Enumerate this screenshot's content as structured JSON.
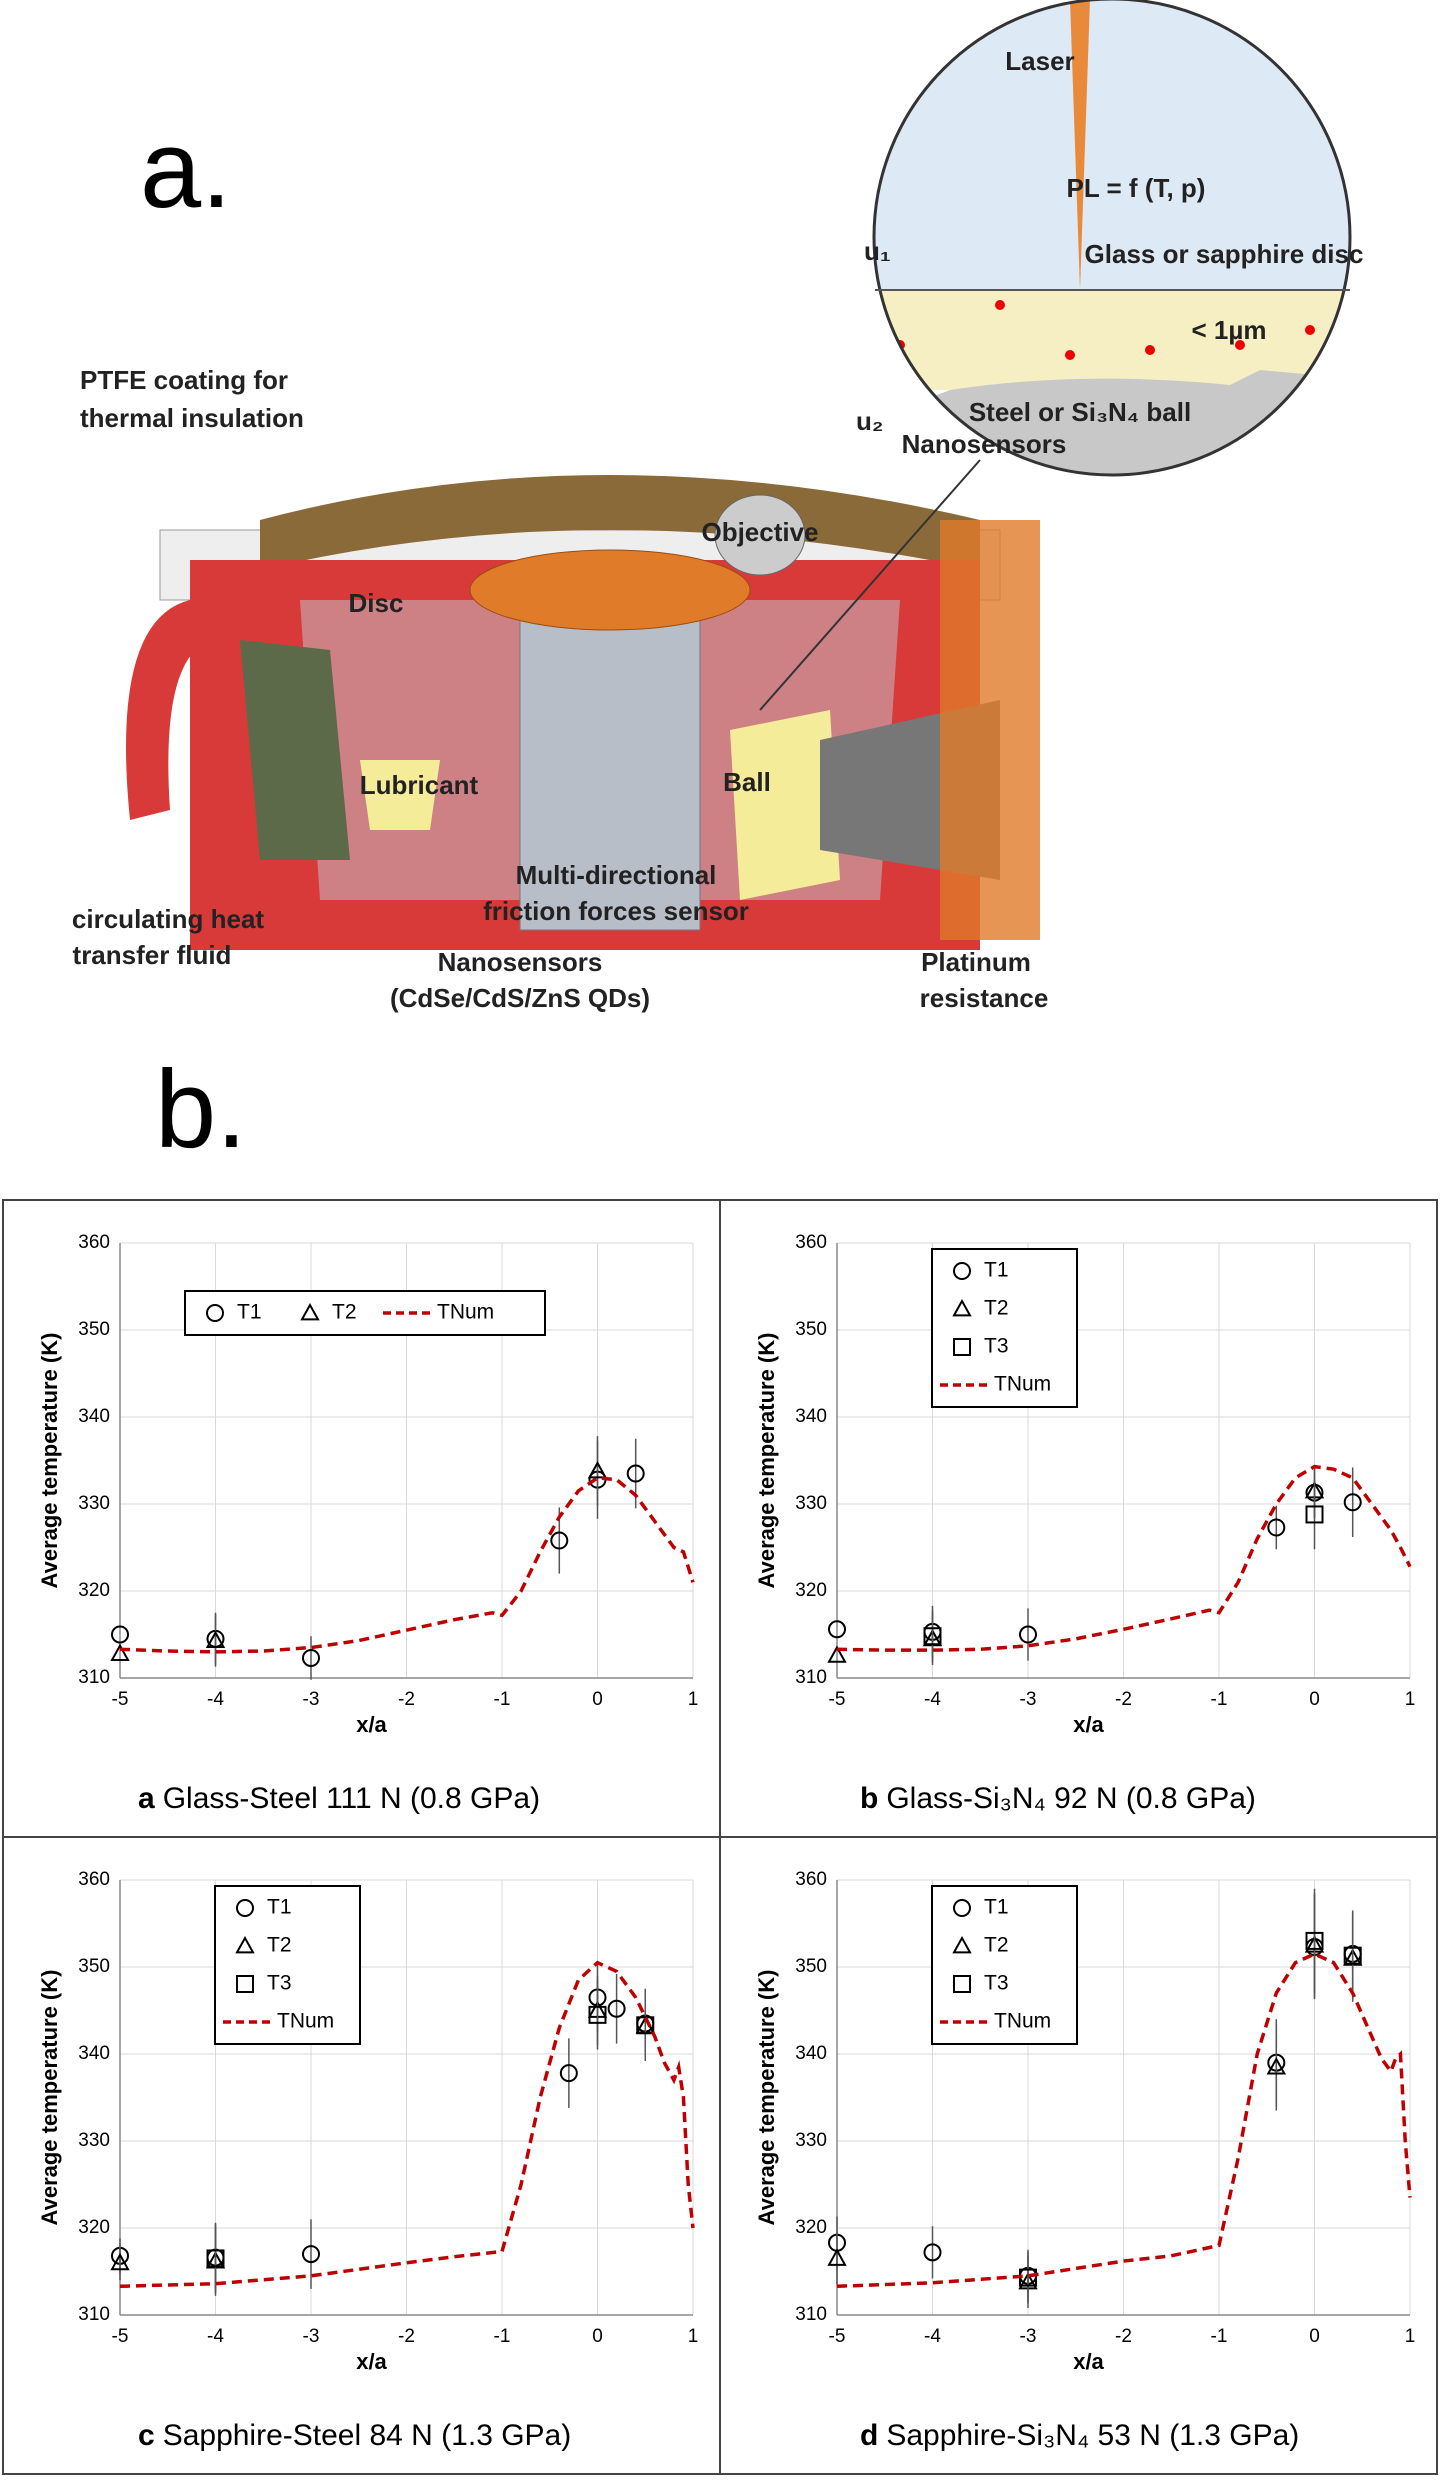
{
  "diagram": {
    "panel_a": "a.",
    "panel_b": "b.",
    "labels": [
      "Laser",
      "PL = f (T, p)",
      "Glass or sapphire disc",
      "u₁",
      "< 1µm",
      "Steel or Si₃N₄ ball",
      "u₂",
      "Nanosensors",
      "PTFE coating for",
      "thermal insulation",
      "Objective",
      "Disc",
      "Lubricant",
      "Ball",
      "Multi-directional",
      "friction forces sensor",
      "circulating heat",
      "transfer fluid",
      "Nanosensors",
      "(CdSe/CdS/ZnS QDs)",
      "Platinum",
      "resistance"
    ]
  },
  "chart_data": [
    {
      "type": "scatter",
      "caption_label": "a",
      "caption": "Glass-Steel 111 N (0.8 GPa)",
      "xlabel": "x/a",
      "ylabel": "Average temperature (K)",
      "xlim": [
        -5,
        1
      ],
      "xticks": [
        -5,
        -4,
        -3,
        -2,
        -1,
        0,
        1
      ],
      "ylim": [
        310,
        360
      ],
      "yticks": [
        310,
        320,
        330,
        340,
        350,
        360
      ],
      "grid": true,
      "legend": "upper left",
      "legend_orientation": "horizontal",
      "series": [
        {
          "name": "T1",
          "marker": "circle",
          "color": "#000000",
          "x": [
            -5,
            -4,
            -3,
            -0.4,
            0,
            0.4
          ],
          "values": [
            315,
            314.5,
            312.3,
            325.8,
            332.8,
            333.5
          ],
          "errors": [
            0,
            3,
            2.5,
            3.8,
            4.5,
            4
          ]
        },
        {
          "name": "T2",
          "marker": "triangle",
          "color": "#000000",
          "x": [
            -5,
            -4,
            0
          ],
          "values": [
            312.8,
            314.3,
            333.8
          ],
          "errors": [
            0,
            3,
            4
          ]
        },
        {
          "name": "TNum",
          "marker": "dashed-line",
          "color": "#c00000",
          "x": [
            -5,
            -4.5,
            -4,
            -3.5,
            -3,
            -2.5,
            -2,
            -1.5,
            -1.1,
            -1,
            -0.8,
            -0.6,
            -0.4,
            -0.2,
            0,
            0.2,
            0.4,
            0.6,
            0.8,
            0.9,
            1
          ],
          "values": [
            313.3,
            313.1,
            313,
            313.1,
            313.5,
            314.3,
            315.5,
            316.7,
            317.5,
            317.2,
            320,
            324.5,
            328.5,
            331.5,
            333,
            332.8,
            331,
            328,
            325,
            324.5,
            321
          ]
        }
      ]
    },
    {
      "type": "scatter",
      "caption_label": "b",
      "caption": "Glass-Si₃N₄ 92 N (0.8 GPa)",
      "xlabel": "x/a",
      "ylabel": "Average temperature (K)",
      "xlim": [
        -5,
        1
      ],
      "xticks": [
        -5,
        -4,
        -3,
        -2,
        -1,
        0,
        1
      ],
      "ylim": [
        310,
        360
      ],
      "yticks": [
        310,
        320,
        330,
        340,
        350,
        360
      ],
      "grid": true,
      "legend": "upper left",
      "legend_orientation": "vertical",
      "series": [
        {
          "name": "T1",
          "marker": "circle",
          "color": "#000000",
          "x": [
            -5,
            -4,
            -3,
            -0.4,
            0,
            0.4
          ],
          "values": [
            315.6,
            315.3,
            315,
            327.3,
            331.3,
            330.2
          ],
          "errors": [
            0,
            3,
            3,
            2.5,
            3,
            4
          ]
        },
        {
          "name": "T2",
          "marker": "triangle",
          "color": "#000000",
          "x": [
            -5,
            -4,
            0
          ],
          "values": [
            312.6,
            314.5,
            331.5
          ],
          "errors": [
            0,
            3,
            3
          ]
        },
        {
          "name": "T3",
          "marker": "square",
          "color": "#000000",
          "x": [
            -4,
            0
          ],
          "values": [
            314.8,
            328.8
          ],
          "errors": [
            3,
            4
          ]
        },
        {
          "name": "TNum",
          "marker": "dashed-line",
          "color": "#c00000",
          "x": [
            -5,
            -4.5,
            -4,
            -3.5,
            -3,
            -2.5,
            -2,
            -1.5,
            -1.1,
            -1,
            -0.8,
            -0.6,
            -0.4,
            -0.2,
            0,
            0.2,
            0.4,
            0.6,
            0.8,
            0.9,
            1
          ],
          "values": [
            313.3,
            313.2,
            313.2,
            313.3,
            313.7,
            314.5,
            315.6,
            316.8,
            317.8,
            317.5,
            321,
            326,
            330,
            333,
            334.3,
            334,
            333,
            330,
            327,
            325,
            322.8
          ]
        }
      ]
    },
    {
      "type": "scatter",
      "caption_label": "c",
      "caption": "Sapphire-Steel 84 N (1.3 GPa)",
      "xlabel": "x/a",
      "ylabel": "Average temperature (K)",
      "xlim": [
        -5,
        1
      ],
      "xticks": [
        -5,
        -4,
        -3,
        -2,
        -1,
        0,
        1
      ],
      "ylim": [
        310,
        360
      ],
      "yticks": [
        310,
        320,
        330,
        340,
        350,
        360
      ],
      "grid": true,
      "legend": "upper left",
      "legend_orientation": "vertical",
      "series": [
        {
          "name": "T1",
          "marker": "circle",
          "color": "#000000",
          "x": [
            -5,
            -4,
            -3,
            -0.3,
            0,
            0.2,
            0.5
          ],
          "values": [
            316.8,
            316.6,
            317,
            337.8,
            346.5,
            345.2,
            343.5
          ],
          "errors": [
            2,
            4,
            4,
            4,
            4,
            4,
            4
          ]
        },
        {
          "name": "T2",
          "marker": "triangle",
          "color": "#000000",
          "x": [
            -5,
            -4,
            0,
            0.5
          ],
          "values": [
            316,
            316.2,
            345,
            343.2
          ],
          "errors": [
            2,
            4,
            4,
            4
          ]
        },
        {
          "name": "T3",
          "marker": "square",
          "color": "#000000",
          "x": [
            -4,
            0,
            0.5
          ],
          "values": [
            316.5,
            344.5,
            343.3
          ],
          "errors": [
            4,
            4,
            4
          ]
        },
        {
          "name": "TNum",
          "marker": "dashed-line",
          "color": "#c00000",
          "x": [
            -5,
            -4,
            -3,
            -2,
            -1.5,
            -1,
            -0.8,
            -0.6,
            -0.4,
            -0.2,
            0,
            0.2,
            0.4,
            0.6,
            0.7,
            0.8,
            0.85,
            0.9,
            0.95,
            1
          ],
          "values": [
            313.3,
            313.6,
            314.5,
            316,
            316.7,
            317.3,
            325,
            335,
            343,
            348.5,
            350.5,
            349.5,
            346.5,
            342,
            339,
            337,
            338.5,
            335,
            325,
            320
          ]
        }
      ]
    },
    {
      "type": "scatter",
      "caption_label": "d",
      "caption": "Sapphire-Si₃N₄ 53 N (1.3 GPa)",
      "xlabel": "x/a",
      "ylabel": "Average temperature (K)",
      "xlim": [
        -5,
        1
      ],
      "xticks": [
        -5,
        -4,
        -3,
        -2,
        -1,
        0,
        1
      ],
      "ylim": [
        310,
        360
      ],
      "yticks": [
        310,
        320,
        330,
        340,
        350,
        360
      ],
      "grid": true,
      "legend": "upper left",
      "legend_orientation": "vertical",
      "series": [
        {
          "name": "T1",
          "marker": "circle",
          "color": "#000000",
          "x": [
            -5,
            -4,
            -3,
            -0.4,
            0,
            0.4
          ],
          "values": [
            318.3,
            317.2,
            314.5,
            339,
            352.3,
            351.5
          ],
          "errors": [
            3,
            3,
            3,
            5,
            6,
            5
          ]
        },
        {
          "name": "T2",
          "marker": "triangle",
          "color": "#000000",
          "x": [
            -5,
            -3,
            -0.4,
            0,
            0.4
          ],
          "values": [
            316.5,
            313.8,
            338.5,
            352.5,
            351
          ],
          "errors": [
            3,
            3,
            5,
            6,
            5
          ]
        },
        {
          "name": "T3",
          "marker": "square",
          "color": "#000000",
          "x": [
            -3,
            0,
            0.4
          ],
          "values": [
            314.3,
            353,
            351.3
          ],
          "errors": [
            3,
            6,
            5
          ]
        },
        {
          "name": "TNum",
          "marker": "dashed-line",
          "color": "#c00000",
          "x": [
            -5,
            -4,
            -3,
            -2,
            -1.5,
            -1,
            -0.8,
            -0.6,
            -0.4,
            -0.2,
            0,
            0.2,
            0.4,
            0.6,
            0.7,
            0.8,
            0.85,
            0.9,
            0.95,
            1
          ],
          "values": [
            313.3,
            313.7,
            314.5,
            316.2,
            316.8,
            318,
            328,
            340,
            347,
            350.5,
            351.5,
            350.5,
            347,
            342,
            339.5,
            338,
            339.5,
            340,
            330,
            323.5
          ]
        }
      ]
    }
  ]
}
